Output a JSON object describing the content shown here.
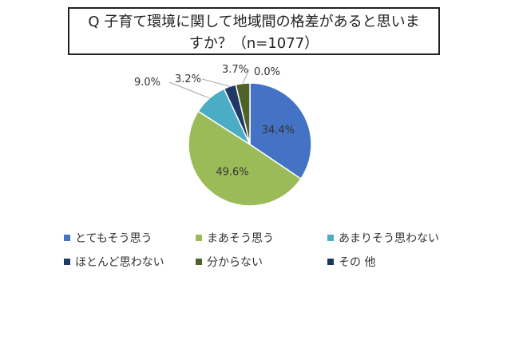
{
  "chart_data": {
    "type": "pie",
    "title_line1": "Q 子育て環境に関して地域間の格差があると思いま",
    "title_line2": "すか？（n=1077）",
    "slices": [
      {
        "label": "とてもそう思う",
        "value": 34.4,
        "display": "34.4%",
        "color": "#4472c4"
      },
      {
        "label": "まあそう思う",
        "value": 49.6,
        "display": "49.6%",
        "color": "#9bbb59"
      },
      {
        "label": "あまりそう思わない",
        "value": 9.0,
        "display": "9.0%",
        "color": "#4bacc6"
      },
      {
        "label": "ほとんど思わない",
        "value": 3.2,
        "display": "3.2%",
        "color": "#1f3864"
      },
      {
        "label": "分からない",
        "value": 3.7,
        "display": "3.7%",
        "color": "#4f6228"
      },
      {
        "label": "その 他",
        "value": 0.0,
        "display": "0.0%",
        "color": "#17375e"
      }
    ],
    "legend_position": "bottom"
  }
}
